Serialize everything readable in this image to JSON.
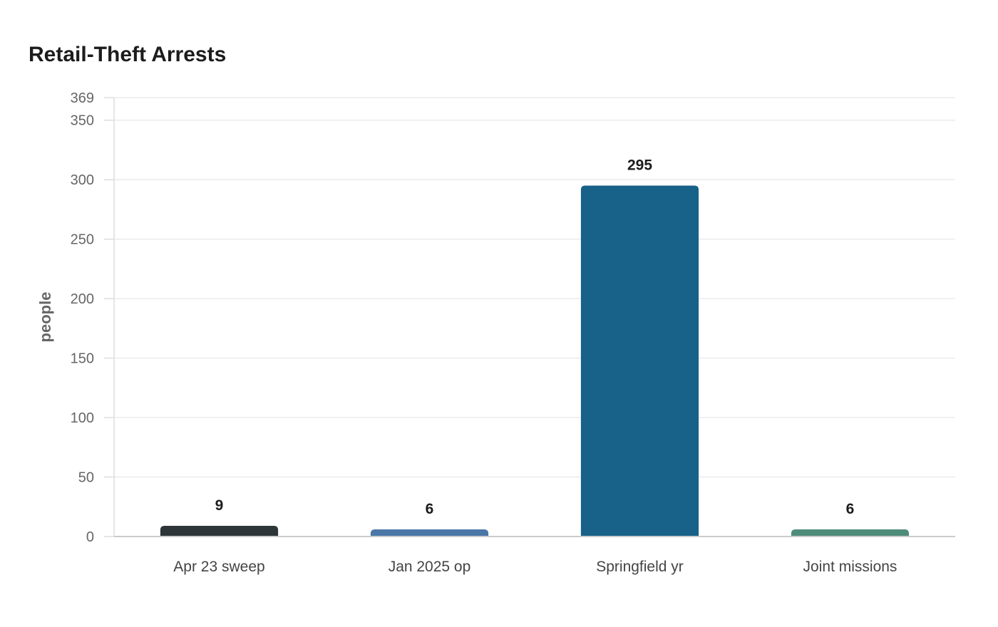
{
  "chart_data": {
    "type": "bar",
    "title": "Retail-Theft Arrests",
    "xlabel": "",
    "ylabel": "people",
    "categories": [
      "Apr 23 sweep",
      "Jan 2025 op",
      "Springfield yr",
      "Joint missions"
    ],
    "values": [
      9,
      6,
      295,
      6
    ],
    "data_labels": [
      "9",
      "6",
      "295",
      "6"
    ],
    "colors": [
      "#2d3538",
      "#4a76a8",
      "#186189",
      "#4e8c7a"
    ],
    "ylim": [
      0,
      369
    ],
    "yticks": [
      0,
      50,
      100,
      150,
      200,
      250,
      300,
      350,
      369
    ],
    "grid": true,
    "legend": "none"
  }
}
